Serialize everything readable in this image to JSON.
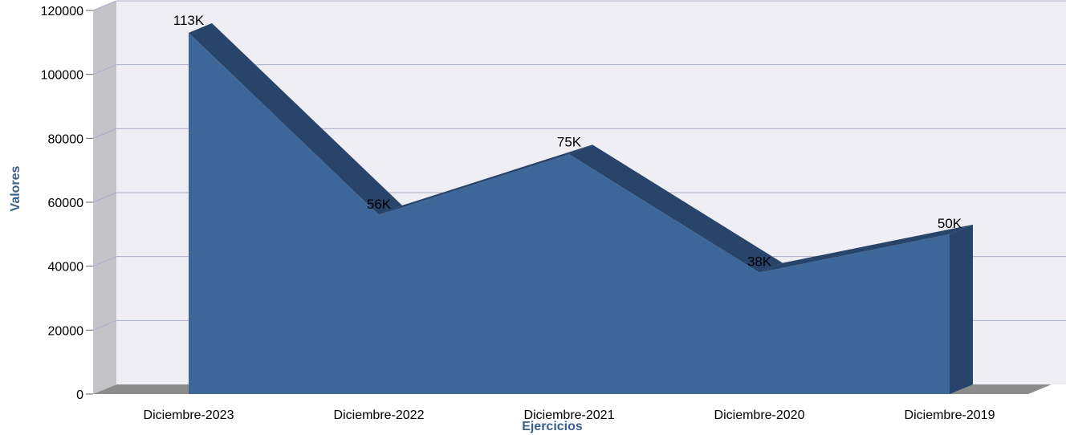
{
  "chart_data": {
    "type": "area",
    "categories": [
      "Diciembre-2023",
      "Diciembre-2022",
      "Diciembre-2021",
      "Diciembre-2020",
      "Diciembre-2019"
    ],
    "series": [
      {
        "values": [
          113000,
          56000,
          75000,
          38000,
          50000
        ]
      }
    ],
    "data_labels": [
      "113K",
      "56K",
      "75K",
      "38K",
      "50K"
    ],
    "xlabel": "Ejercicios",
    "ylabel": "Valores",
    "ylim": [
      0,
      120000
    ],
    "yticks": [
      "0",
      "20000",
      "40000",
      "60000",
      "80000",
      "100000",
      "120000"
    ],
    "grid": true,
    "style": "3d",
    "colors": {
      "area_front": "#3d6699",
      "area_side": "#28446b",
      "floor": "#8c8c8c",
      "left_wall": "#c3c3c8",
      "back_wall": "#efeef4",
      "grid": "#a9aec9",
      "axis_title": "#3a5f8a"
    }
  }
}
